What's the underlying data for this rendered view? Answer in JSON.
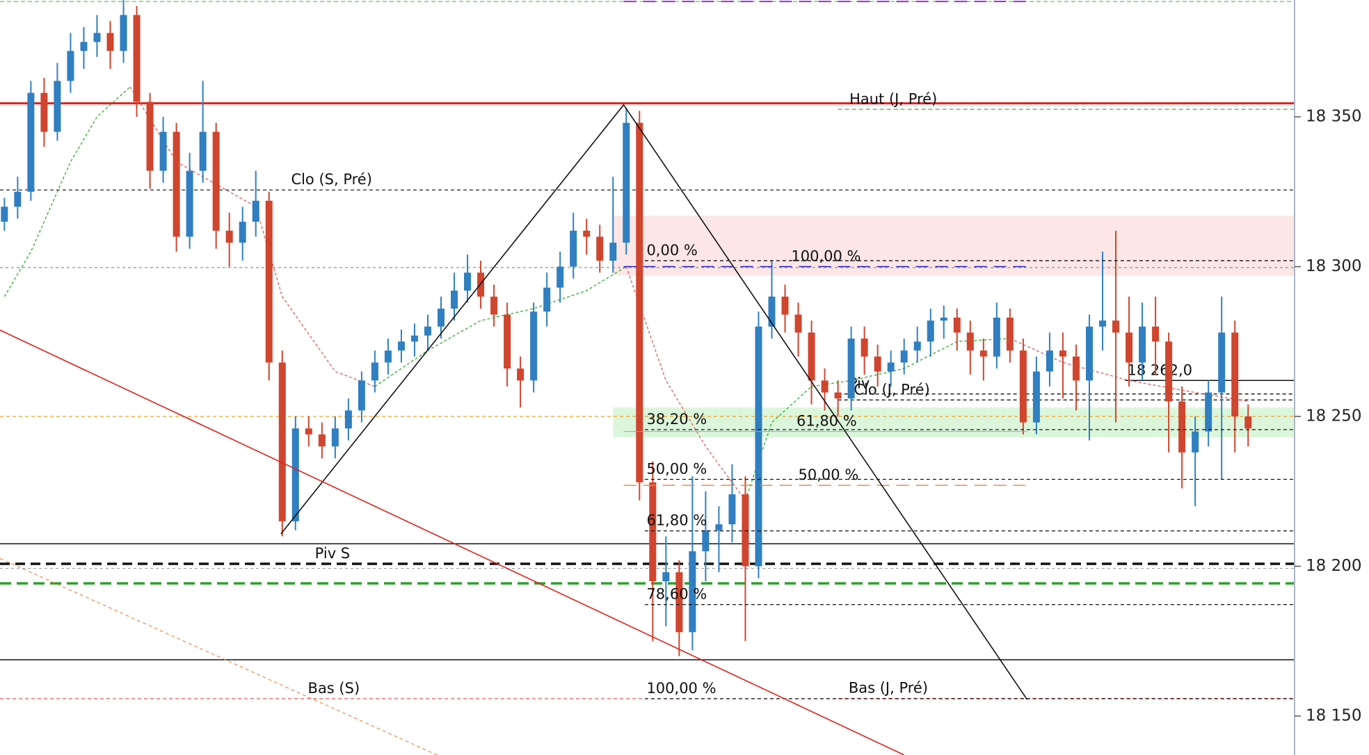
{
  "chart_data": {
    "type": "candlestick",
    "up_color": "#2f7fc1",
    "down_color": "#d0452e",
    "ylim": [
      18137,
      18389
    ],
    "yticks": [
      {
        "value": 18350,
        "label": "18 350"
      },
      {
        "value": 18300,
        "label": "18 300"
      },
      {
        "value": 18250,
        "label": "18 250"
      },
      {
        "value": 18200,
        "label": "18 200"
      },
      {
        "value": 18150,
        "label": "18 150"
      }
    ],
    "open": [
      18315,
      18320,
      18325,
      18358,
      18345,
      18362,
      18372,
      18375,
      18378,
      18372,
      18384,
      18355,
      18332,
      18345,
      18310,
      18332,
      18345,
      18312,
      18308,
      18315,
      18322,
      18268,
      18215,
      18246,
      18244,
      18240,
      18246,
      18252,
      18262,
      18268,
      18272,
      18275,
      18277,
      18280,
      18286,
      18292,
      18298,
      18290,
      18284,
      18266,
      18262,
      18285,
      18293,
      18300,
      18312,
      18310,
      18302,
      18308,
      18348,
      18228,
      18195,
      18198,
      18178,
      18205,
      18212,
      18214,
      18224,
      18200,
      18280,
      18290,
      18284,
      18278,
      18262,
      18258,
      18256,
      18276,
      18270,
      18265,
      18268,
      18272,
      18275,
      18282,
      18283,
      18278,
      18272,
      18270,
      18283,
      18272,
      18248,
      18265,
      18272,
      18270,
      18262,
      18280,
      18282,
      18278,
      18268,
      18280,
      18275,
      18255,
      18238,
      18245,
      18258,
      18278,
      18250
    ],
    "high": [
      18323,
      18330,
      18362,
      18363,
      18368,
      18378,
      18380,
      18384,
      18382,
      18389,
      18387,
      18358,
      18350,
      18348,
      18338,
      18362,
      18348,
      18318,
      18320,
      18332,
      18325,
      18272,
      18250,
      18250,
      18248,
      18250,
      18256,
      18265,
      18272,
      18276,
      18279,
      18281,
      18284,
      18290,
      18298,
      18304,
      18302,
      18294,
      18288,
      18270,
      18288,
      18298,
      18305,
      18318,
      18316,
      18314,
      18330,
      18353,
      18352,
      18235,
      18210,
      18202,
      18230,
      18225,
      18220,
      18234,
      18230,
      18285,
      18302,
      18294,
      18288,
      18282,
      18266,
      18262,
      18280,
      18280,
      18274,
      18272,
      18276,
      18280,
      18286,
      18287,
      18286,
      18282,
      18276,
      18288,
      18286,
      18276,
      18270,
      18278,
      18278,
      18274,
      18284,
      18305,
      18312,
      18290,
      18288,
      18290,
      18278,
      18260,
      18250,
      18262,
      18290,
      18282,
      18254
    ],
    "low": [
      18312,
      18316,
      18322,
      18340,
      18342,
      18358,
      18366,
      18370,
      18366,
      18368,
      18350,
      18326,
      18328,
      18305,
      18306,
      18328,
      18306,
      18300,
      18302,
      18310,
      18262,
      18210,
      18212,
      18240,
      18236,
      18236,
      18242,
      18248,
      18258,
      18264,
      18268,
      18270,
      18272,
      18276,
      18282,
      18288,
      18286,
      18280,
      18260,
      18253,
      18258,
      18280,
      18288,
      18296,
      18304,
      18298,
      18298,
      18304,
      18222,
      18175,
      18180,
      18170,
      18172,
      18195,
      18198,
      18208,
      18175,
      18196,
      18276,
      18278,
      18270,
      18254,
      18252,
      18250,
      18252,
      18264,
      18260,
      18260,
      18264,
      18268,
      18270,
      18276,
      18272,
      18264,
      18262,
      18266,
      18268,
      18244,
      18244,
      18260,
      18256,
      18252,
      18242,
      18272,
      18248,
      18260,
      18262,
      18264,
      18238,
      18226,
      18220,
      18240,
      18229,
      18238,
      18240
    ],
    "close": [
      18320,
      18325,
      18358,
      18345,
      18362,
      18372,
      18375,
      18378,
      18372,
      18384,
      18355,
      18332,
      18345,
      18310,
      18332,
      18345,
      18312,
      18308,
      18315,
      18322,
      18268,
      18215,
      18246,
      18244,
      18240,
      18246,
      18252,
      18262,
      18268,
      18272,
      18275,
      18277,
      18280,
      18286,
      18292,
      18298,
      18290,
      18284,
      18266,
      18262,
      18285,
      18293,
      18300,
      18312,
      18310,
      18302,
      18308,
      18348,
      18228,
      18195,
      18198,
      18178,
      18205,
      18212,
      18214,
      18224,
      18200,
      18280,
      18290,
      18284,
      18278,
      18262,
      18258,
      18256,
      18276,
      18270,
      18265,
      18268,
      18272,
      18275,
      18282,
      18283,
      18278,
      18272,
      18270,
      18283,
      18272,
      18248,
      18265,
      18272,
      18270,
      18262,
      18280,
      18282,
      18278,
      18268,
      18280,
      18275,
      18255,
      18238,
      18245,
      18258,
      18278,
      18250,
      18246
    ],
    "zones": [
      {
        "from": 18297,
        "to": 18317,
        "start": 46,
        "color": "rgba(240,140,140,0.22)"
      },
      {
        "from": 18243,
        "to": 18253,
        "start": 46,
        "color": "rgba(140,225,140,0.3)"
      }
    ],
    "levels": [
      {
        "price": 18388.5,
        "color": "#3cb33c",
        "dash": "6 4",
        "width": 1,
        "start": -1
      },
      {
        "price": 18354.5,
        "color": "#e0201b",
        "width": 3,
        "start": -1
      },
      {
        "price": 18352.5,
        "color": "#5cc05c",
        "dash": "6 4",
        "width": 1.5,
        "start": 63,
        "label": "Haut (J, Pré)",
        "label_color": "#4cbb4c"
      },
      {
        "price": 18325.6,
        "color": "#222222",
        "dash": "5 4",
        "width": 1.3,
        "start": -1,
        "label": "Clo (S, Pré)"
      },
      {
        "price": 18299.7,
        "color": "#777777",
        "dash": "4 4",
        "width": 1,
        "start": -1
      },
      {
        "price": 18262,
        "color": "#111111",
        "width": 1.5,
        "start": 84.7,
        "label": "18 262,0"
      },
      {
        "price": 18257.5,
        "color": "#111111",
        "dash": "5 4",
        "width": 1.3,
        "start": 63,
        "label": "Piv"
      },
      {
        "price": 18255.5,
        "color": "#111111",
        "dash": "5 4",
        "width": 1.3,
        "start": 63,
        "label": "Clo (J, Pré)"
      },
      {
        "price": 18250,
        "color": "#f0a020",
        "dash": "5 4",
        "width": 1.3,
        "start": -1
      },
      {
        "price": 18207.5,
        "color": "#111111",
        "width": 1.5,
        "start": -1
      },
      {
        "price": 18200.8,
        "color": "#111111",
        "dash": "14 8",
        "width": 3.5,
        "start": -1,
        "label": "Piv S"
      },
      {
        "price": 18199.3,
        "color": "#999999",
        "dash": "4 4",
        "width": 1,
        "start": -1
      },
      {
        "price": 18194.3,
        "color": "#2ca02c",
        "dash": "16 8",
        "width": 3.5,
        "start": -1
      },
      {
        "price": 18168.8,
        "color": "#111111",
        "width": 1.5,
        "start": -1
      },
      {
        "price": 18155.8,
        "color": "#e05555",
        "dash": "5 4",
        "width": 1.3,
        "start": -1,
        "label": "Bas (S)",
        "label_color": "#e05555"
      },
      {
        "price": 18155.9,
        "color": "#e05555",
        "dash": "5 4",
        "width": 1,
        "start": 63,
        "label": "Bas (J, Pré)",
        "label_color": "#e05555"
      }
    ],
    "retracements": [
      {
        "start": 48.4,
        "levels": [
          {
            "price": 18302,
            "label": "0,00 %",
            "color": "#111111",
            "dash": "5 4",
            "width": 1.3
          },
          {
            "price": 18245.6,
            "label": "38,20 %",
            "color": "#111111",
            "dash": "5 4",
            "width": 1.3
          },
          {
            "price": 18229,
            "label": "50,00 %",
            "color": "#111111",
            "dash": "5 4",
            "width": 1.3
          },
          {
            "price": 18211.8,
            "label": "61,80 %",
            "color": "#111111",
            "dash": "5 4",
            "width": 1.3
          },
          {
            "price": 18187.2,
            "label": "78,60 %",
            "color": "#111111",
            "dash": "5 4",
            "width": 1.3
          },
          {
            "price": 18155.8,
            "label": "100,00 %",
            "color": "#111111",
            "dash": "5 4",
            "width": 1.3
          }
        ]
      },
      {
        "start": 46.8,
        "end": 77.3,
        "levels": [
          {
            "price": 18388.5,
            "color": "#9b30c8",
            "dash": "18 10",
            "width": 2
          },
          {
            "price": 18300,
            "label": "100,00 %",
            "color": "#2020d0",
            "dash": "18 10",
            "width": 1.5
          },
          {
            "price": 18245,
            "label": "61,80 %",
            "color": "#8fa5d8",
            "width": 1
          },
          {
            "price": 18227,
            "label": "50,00 %",
            "color": "#f08a4b",
            "dash": "18 10",
            "width": 1.5
          }
        ]
      }
    ],
    "trend_lines": [
      {
        "x": [
          20.9,
          46.8,
          77.3
        ],
        "values": [
          18210.8,
          18354,
          18155.5
        ],
        "color": "#111111",
        "width": 1.6
      },
      {
        "x": [
          -0.33,
          68
        ],
        "values": [
          18278.8,
          18137
        ],
        "color": "#e0201b",
        "width": 1.6
      },
      {
        "x": [
          -0.33,
          32.7
        ],
        "values": [
          18202.6,
          18137
        ],
        "color": "#f08a4b",
        "width": 1.2,
        "dash": "5 4"
      }
    ],
    "moving_averages": [
      {
        "x": [
          0,
          2,
          5,
          7,
          9.5
        ],
        "values": [
          18290,
          18305,
          18335,
          18350,
          18360
        ],
        "color": "#3cb33c"
      },
      {
        "x": [
          9.5,
          13,
          17,
          19,
          21,
          25,
          28
        ],
        "values": [
          18360,
          18335,
          18325,
          18320,
          18290,
          18265,
          18260
        ],
        "color": "#e06666"
      },
      {
        "x": [
          28,
          32,
          36,
          40,
          44,
          47
        ],
        "values": [
          18260,
          18272,
          18282,
          18286,
          18292,
          18300
        ],
        "color": "#3cb33c"
      },
      {
        "x": [
          47,
          50,
          53,
          56
        ],
        "values": [
          18300,
          18262,
          18240,
          18222
        ],
        "color": "#e06666"
      },
      {
        "x": [
          56,
          58,
          61,
          64,
          68,
          72,
          76
        ],
        "values": [
          18222,
          18248,
          18260,
          18262,
          18266,
          18275,
          18276
        ],
        "color": "#3cb33c"
      },
      {
        "x": [
          76,
          80,
          85,
          90,
          94
        ],
        "values": [
          18276,
          18268,
          18262,
          18258,
          18255
        ],
        "color": "#e06666"
      }
    ]
  }
}
